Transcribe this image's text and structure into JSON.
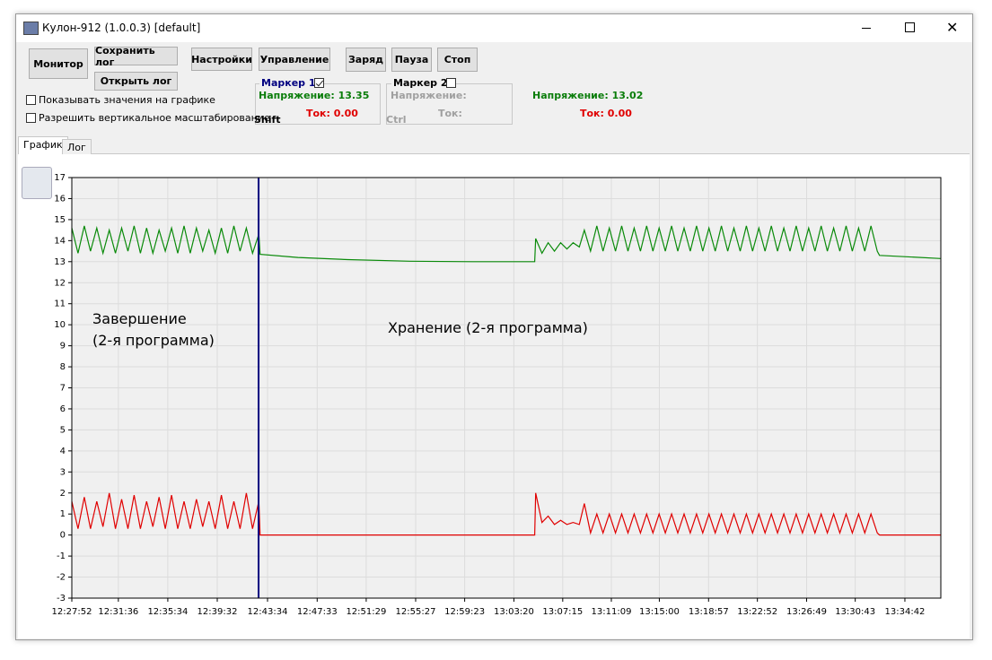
{
  "window": {
    "title": "Кулон-912 (1.0.0.3) [default]"
  },
  "toolbar": {
    "buttons": [
      "Монитор",
      "Сохранить лог",
      "Открыть лог",
      "Настройки",
      "Управление",
      "Заряд",
      "Пауза",
      "Стоп"
    ],
    "checkboxes": [
      "Показывать значения на графике",
      "Разрешить вертикальное масштабирование"
    ]
  },
  "markers": [
    {
      "title": "Маркер 1",
      "checked": true,
      "voltage": "Напряжение: 13.35",
      "current": "Ток: 0.00",
      "key": "Shift"
    },
    {
      "title": "Маркер 2",
      "checked": false,
      "voltage": "Напряжение:",
      "current": "Ток:",
      "key": "Ctrl"
    }
  ],
  "live": {
    "voltage": "Напряжение: 13.02",
    "current": "Ток: 0.00"
  },
  "tabs": [
    "График",
    "Лог"
  ],
  "chart_data": {
    "type": "line",
    "annotations": [
      {
        "lines": [
          "Завершение",
          "(2-я программа)"
        ]
      },
      {
        "lines": [
          "Хранение (2-я программа)"
        ]
      }
    ],
    "marker": "12:42:51",
    "marker_color": "#000080",
    "grid": true,
    "xlim": [
      "12:27:52",
      "13:37:35"
    ],
    "xticks": [
      "12:27:52",
      "12:31:36",
      "12:35:34",
      "12:39:32",
      "12:43:34",
      "12:47:33",
      "12:51:29",
      "12:55:27",
      "12:59:23",
      "13:03:20",
      "13:07:15",
      "13:11:09",
      "13:15:00",
      "13:18:57",
      "13:22:52",
      "13:26:49",
      "13:30:43",
      "13:34:42"
    ],
    "ylim": [
      -3,
      17
    ],
    "yticks": [
      -3,
      -2,
      -1,
      0,
      1,
      2,
      3,
      4,
      5,
      6,
      7,
      8,
      9,
      10,
      11,
      12,
      13,
      14,
      15,
      16,
      17
    ],
    "x": [
      "12:27:52",
      "12:28:22",
      "12:28:52",
      "12:29:22",
      "12:29:52",
      "12:30:22",
      "12:30:52",
      "12:31:22",
      "12:31:52",
      "12:32:22",
      "12:32:52",
      "12:33:22",
      "12:33:52",
      "12:34:22",
      "12:34:52",
      "12:35:22",
      "12:35:52",
      "12:36:22",
      "12:36:52",
      "12:37:22",
      "12:37:52",
      "12:38:22",
      "12:38:52",
      "12:39:22",
      "12:39:52",
      "12:40:22",
      "12:40:52",
      "12:41:22",
      "12:41:52",
      "12:42:22",
      "12:42:52",
      "12:42:58",
      "12:46:00",
      "12:50:00",
      "12:55:00",
      "13:00:00",
      "13:05:00",
      "13:05:05",
      "13:05:35",
      "13:06:05",
      "13:06:35",
      "13:07:05",
      "13:07:35",
      "13:08:05",
      "13:08:35",
      "13:08:59",
      "13:09:29",
      "13:09:59",
      "13:10:29",
      "13:10:59",
      "13:11:29",
      "13:11:59",
      "13:12:29",
      "13:12:59",
      "13:13:29",
      "13:13:59",
      "13:14:29",
      "13:14:59",
      "13:15:29",
      "13:15:59",
      "13:16:29",
      "13:16:59",
      "13:17:29",
      "13:17:59",
      "13:18:29",
      "13:18:59",
      "13:19:29",
      "13:19:59",
      "13:20:29",
      "13:20:59",
      "13:21:29",
      "13:21:59",
      "13:22:29",
      "13:22:59",
      "13:23:29",
      "13:23:59",
      "13:24:29",
      "13:24:59",
      "13:25:29",
      "13:25:59",
      "13:26:29",
      "13:26:59",
      "13:27:29",
      "13:27:59",
      "13:28:29",
      "13:28:59",
      "13:29:29",
      "13:29:59",
      "13:30:29",
      "13:30:59",
      "13:31:29",
      "13:31:59",
      "13:32:29",
      "13:32:40",
      "13:37:35"
    ],
    "series": [
      {
        "color": "#0a8a0a",
        "values": [
          14.6,
          13.4,
          14.7,
          13.5,
          14.6,
          13.4,
          14.5,
          13.4,
          14.6,
          13.5,
          14.7,
          13.4,
          14.6,
          13.4,
          14.5,
          13.5,
          14.6,
          13.4,
          14.7,
          13.4,
          14.6,
          13.5,
          14.5,
          13.4,
          14.6,
          13.4,
          14.7,
          13.5,
          14.6,
          13.4,
          14.3,
          13.35,
          13.2,
          13.1,
          13.02,
          13.0,
          13.0,
          14.1,
          13.4,
          13.9,
          13.5,
          13.9,
          13.6,
          13.9,
          13.7,
          14.5,
          13.5,
          14.7,
          13.5,
          14.6,
          13.5,
          14.7,
          13.5,
          14.6,
          13.5,
          14.7,
          13.5,
          14.6,
          13.5,
          14.7,
          13.5,
          14.6,
          13.5,
          14.7,
          13.5,
          14.6,
          13.5,
          14.7,
          13.5,
          14.6,
          13.5,
          14.7,
          13.5,
          14.6,
          13.5,
          14.7,
          13.5,
          14.6,
          13.5,
          14.7,
          13.5,
          14.6,
          13.5,
          14.7,
          13.5,
          14.6,
          13.5,
          14.7,
          13.5,
          14.6,
          13.5,
          14.7,
          13.5,
          13.3,
          13.15
        ]
      },
      {
        "color": "#e00000",
        "values": [
          1.6,
          0.3,
          1.8,
          0.3,
          1.6,
          0.4,
          2.0,
          0.3,
          1.7,
          0.3,
          1.9,
          0.3,
          1.6,
          0.4,
          1.8,
          0.3,
          1.9,
          0.3,
          1.6,
          0.3,
          1.7,
          0.4,
          1.6,
          0.3,
          1.9,
          0.3,
          1.6,
          0.3,
          2.0,
          0.3,
          1.6,
          0,
          0,
          0,
          0,
          0,
          0,
          2.0,
          0.6,
          0.9,
          0.5,
          0.7,
          0.5,
          0.6,
          0.5,
          1.5,
          0.1,
          1.0,
          0.1,
          1.0,
          0.1,
          1.0,
          0.1,
          1.0,
          0.1,
          1.0,
          0.1,
          1.0,
          0.1,
          1.0,
          0.1,
          1.0,
          0.1,
          1.0,
          0.1,
          1.0,
          0.1,
          1.0,
          0.1,
          1.0,
          0.1,
          1.0,
          0.1,
          1.0,
          0.1,
          1.0,
          0.1,
          1.0,
          0.1,
          1.0,
          0.1,
          1.0,
          0.1,
          1.0,
          0.1,
          1.0,
          0.1,
          1.0,
          0.1,
          1.0,
          0.1,
          1.0,
          0.1,
          0,
          0
        ]
      }
    ]
  }
}
